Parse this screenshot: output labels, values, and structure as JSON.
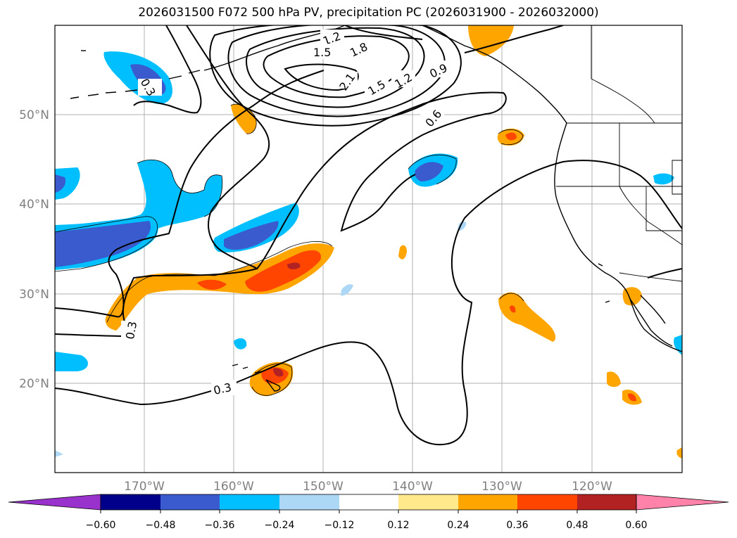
{
  "title": "2026031500 F072 500 hPa PV, precipitation PC (2026031900 - 2026032000)",
  "map": {
    "lon_ticks": [
      "170°W",
      "160°W",
      "150°W",
      "140°W",
      "130°W",
      "120°W"
    ],
    "lat_ticks": [
      "50°N",
      "40°N",
      "30°N",
      "20°N"
    ],
    "contour_labels": [
      "1.2",
      "1.5",
      "1.8",
      "2.1",
      "1.5",
      "1.2",
      "0.9",
      "0.6",
      "0.3",
      "0.3",
      "0.3"
    ],
    "colors": {
      "neg_060": "#9932cc",
      "neg_048": "#00008b",
      "neg_036": "#3a5bcd",
      "neg_024": "#00bfff",
      "neg_012": "#add8f5",
      "pos_012": "#ffe98a",
      "pos_024": "#ffa500",
      "pos_036": "#ff4500",
      "pos_048": "#b22222",
      "pos_060": "#ff82ab",
      "grid": "#b0b0b0"
    }
  },
  "colorbar": {
    "tick_labels": [
      "−0.60",
      "−0.48",
      "−0.36",
      "−0.24",
      "−0.12",
      "0.12",
      "0.24",
      "0.36",
      "0.48",
      "0.60"
    ]
  }
}
